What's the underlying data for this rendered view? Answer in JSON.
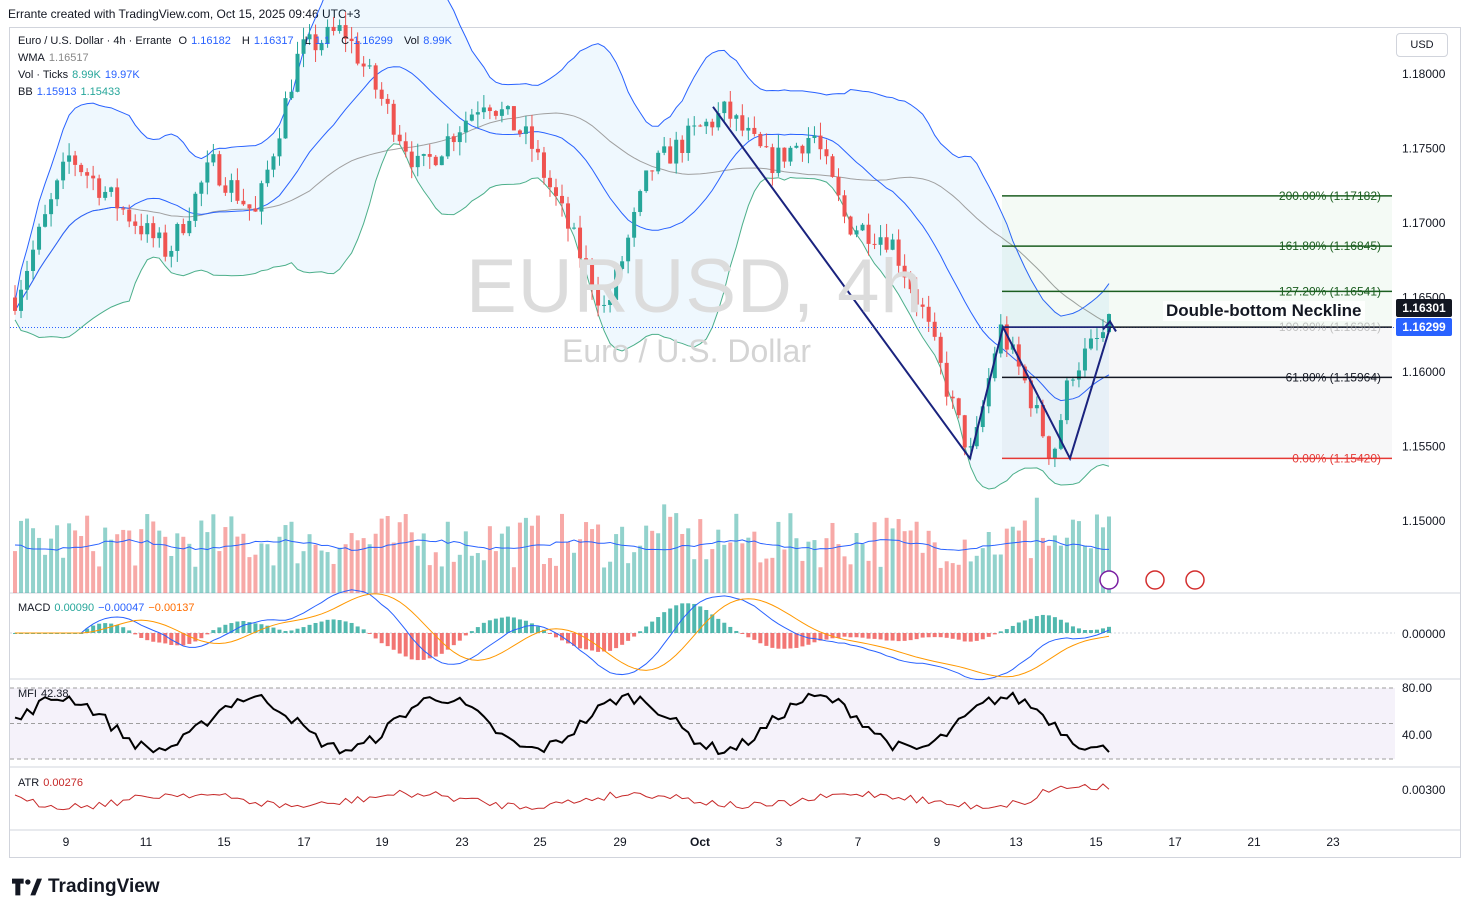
{
  "header": {
    "credit": "Errante created with TradingView.com, Oct 15, 2025 09:46 UTC+3"
  },
  "legend": {
    "symbol": "Euro / U.S. Dollar · 4h · Errante",
    "ohlc": [
      {
        "label": "O",
        "value": "1.16182"
      },
      {
        "label": "H",
        "value": "1.16317"
      },
      {
        "label": "L",
        "value": "1.1"
      },
      {
        "label": "C",
        "value": "1.16299"
      }
    ],
    "vol": {
      "label": "Vol",
      "value": "8.99K"
    },
    "wma": {
      "label": "WMA",
      "value": "1.16517"
    },
    "vol_ticks": {
      "label": "Vol · Ticks",
      "v1": "8.99K",
      "v2": "19.97K"
    },
    "bb": {
      "label": "BB",
      "v1": "1.15913",
      "v2": "1.15433"
    },
    "macd": {
      "label": "MACD",
      "v1": "0.00090",
      "v2": "−0.00047",
      "v3": "−0.00137"
    },
    "mfi": {
      "label": "MFI",
      "v1": "42.38"
    },
    "atr": {
      "label": "ATR",
      "v1": "0.00276"
    }
  },
  "currency_button": "USD",
  "watermark": {
    "main": "EURUSD, 4h",
    "sub": "Euro / U.S. Dollar"
  },
  "neckline_label": "Double-bottom Neckline",
  "price_tags": [
    {
      "value": "1.16301",
      "color": "#131722"
    },
    {
      "value": "1.16299",
      "color": "#2962ff"
    }
  ],
  "brand": "TradingView",
  "colors": {
    "up": "#26a69a",
    "down": "#ef5350",
    "bb": "#4caf8a",
    "bb_mid": "#2962ff",
    "wma": "#a0a0a0",
    "pattern": "#1a237e",
    "fib_green": "#1b5e20",
    "fib_red": "#e53935",
    "macd_line": "#2962ff",
    "signal_line": "#ff9800",
    "mfi_line": "#000000",
    "atr_line": "#c62828"
  },
  "chart_data": {
    "type": "candlestick",
    "x_ticks": [
      "9",
      "11",
      "15",
      "17",
      "19",
      "23",
      "25",
      "29",
      "Oct",
      "3",
      "7",
      "9",
      "13",
      "15",
      "17",
      "21",
      "23"
    ],
    "y_ticks": [
      "1.18000",
      "1.17500",
      "1.17000",
      "1.16500",
      "1.16000",
      "1.15500",
      "1.15000"
    ],
    "ylim": [
      1.1462,
      1.1828
    ],
    "last_price": 1.16299,
    "key_points": [
      {
        "name": "swing-high",
        "date": "Oct 1",
        "price": 1.1778
      },
      {
        "name": "first-bottom",
        "date": "Oct 10",
        "price": 1.1542
      },
      {
        "name": "neckline",
        "date": "Oct 13",
        "price": 1.16301
      },
      {
        "name": "second-bottom",
        "date": "Oct 14",
        "price": 1.1542
      },
      {
        "name": "current",
        "date": "Oct 15",
        "price": 1.16299
      }
    ],
    "fib_levels": [
      {
        "label": "200.00% (1.17182)",
        "price": 1.17182
      },
      {
        "label": "161.80% (1.16845)",
        "price": 1.16845
      },
      {
        "label": "127.20% (1.16541)",
        "price": 1.16541
      },
      {
        "label": "100.00% (1.16301)",
        "price": 1.16301
      },
      {
        "label": "61.80% (1.15964)",
        "price": 1.15964
      },
      {
        "label": "0.00% (1.15420)",
        "price": 1.1542
      }
    ],
    "macd": {
      "y_ticks": [
        "0.00000"
      ],
      "values": {
        "macd": 0.0009,
        "signal": -0.00047,
        "hist": -0.00137
      }
    },
    "mfi": {
      "y_ticks": [
        "80.00",
        "40.00"
      ],
      "value": 42.38,
      "upper": 80,
      "lower": 20
    },
    "atr": {
      "y_ticks": [
        "0.00300"
      ],
      "value": 0.00276
    }
  }
}
